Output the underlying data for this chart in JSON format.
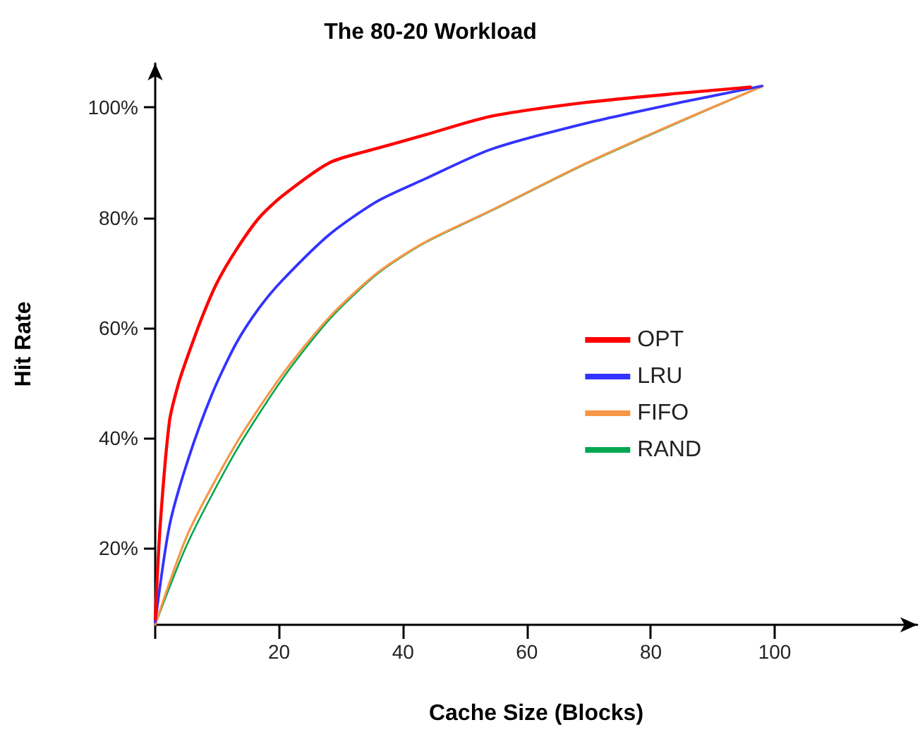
{
  "chart_data": {
    "type": "line",
    "title": "The 80-20 Workload",
    "xlabel": "Cache Size (Blocks)",
    "ylabel": "Hit Rate",
    "xlim": [
      0,
      123
    ],
    "ylim": [
      6,
      108
    ],
    "xticks": [
      {
        "value": 0,
        "label": null
      },
      20,
      40,
      60,
      80,
      100
    ],
    "yticks": [
      {
        "value": 20,
        "label": "20%"
      },
      {
        "value": 40,
        "label": "40%"
      },
      {
        "value": 60,
        "label": "60%"
      },
      {
        "value": 80,
        "label": "80%"
      },
      {
        "value": 100,
        "label": "100%"
      }
    ],
    "grid": false,
    "legend": "right",
    "marker": "none",
    "line_style": "solid",
    "series": [
      {
        "name": "OPT",
        "color": "#ff0000",
        "x": [
          0,
          0.8,
          2.3,
          3.8,
          5.3,
          7.6,
          9.9,
          13,
          16.8,
          20.6,
          28.2,
          35.9,
          43.5,
          54.2,
          69.4,
          84.7,
          96.1
        ],
        "values": [
          7,
          24,
          43,
          50,
          55,
          62,
          68,
          74,
          80,
          84,
          90,
          92.6,
          95,
          98.4,
          100.9,
          102.6,
          103.7
        ]
      },
      {
        "name": "LRU",
        "color": "#3333ff",
        "x": [
          0,
          2.3,
          5.3,
          9.2,
          13,
          16.8,
          20.6,
          28.2,
          35.9,
          43.5,
          54.2,
          69.4,
          84.7,
          97.9
        ],
        "values": [
          6.5,
          24,
          36,
          48,
          57,
          63.6,
          68.7,
          77,
          83,
          87,
          92.4,
          97.1,
          100.9,
          103.9
        ]
      },
      {
        "name": "FIFO",
        "color": "#f79646",
        "x": [
          0,
          5.3,
          13,
          20.6,
          28.2,
          35.9,
          43.5,
          54.2,
          69.4,
          84.7,
          98.1
        ],
        "values": [
          6,
          22.6,
          38.8,
          51.6,
          62,
          70,
          75.5,
          81.3,
          89.8,
          97.5,
          103.9
        ]
      },
      {
        "name": "RAND",
        "color": "#00a650",
        "x": [
          0,
          5.3,
          13,
          20.6,
          28.2,
          35.9,
          43.5,
          54.2,
          69.4,
          84.7,
          98.1
        ],
        "values": [
          6,
          21,
          37.5,
          50.8,
          61.6,
          69.8,
          75.4,
          81.2,
          89.7,
          97.4,
          103.9
        ]
      }
    ]
  }
}
